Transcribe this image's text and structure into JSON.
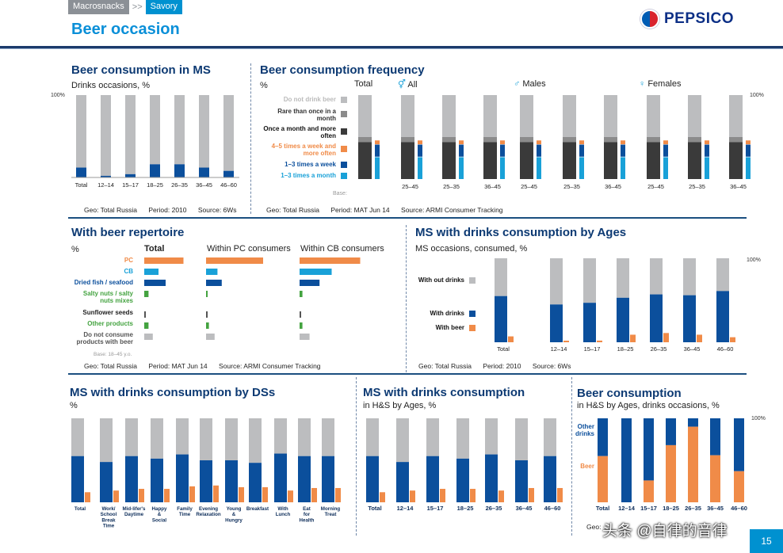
{
  "breadcrumb": {
    "parent": "Macrosnacks",
    "separator": ">>",
    "current": "Savory"
  },
  "page_title": "Beer occasion",
  "logo": "PEPSICO",
  "page_number": "15",
  "watermark": "头条 @自律的音律",
  "colors": {
    "grey": "#bcbdbf",
    "blue": "#0b4f9c",
    "orange": "#f08b48",
    "dark": "#3a3a3a",
    "cyan": "#19a1d8",
    "green": "#44a340"
  },
  "chart_data": [
    {
      "id": "beer_ms",
      "type": "bar",
      "title": "Beer consumption in MS",
      "subtitle": "Drinks occasions, %",
      "ylim": [
        0,
        100
      ],
      "top_label": "100%",
      "categories": [
        "Total",
        "12–14",
        "15–17",
        "18–25",
        "26–35",
        "36–45",
        "46–60"
      ],
      "series": [
        {
          "values": [
            12,
            2,
            4,
            16,
            16,
            12,
            8
          ]
        },
        {
          "values": [
            88,
            98,
            96,
            84,
            84,
            88,
            92
          ]
        }
      ],
      "footer": {
        "geo": "Geo: Total Russia",
        "period": "Period: 2010",
        "source": "Source: 6Ws"
      }
    },
    {
      "id": "beer_freq",
      "type": "bar",
      "title": "Beer consumption frequency",
      "subtitle": "%",
      "top_label": "100%",
      "legend": [
        "Do not drink beer",
        "Rare than once in a month",
        "Once a month and more often",
        "4–5 times a week and more often",
        "1–3 times a week",
        "1–3 times a month"
      ],
      "groups": [
        {
          "label": "Total",
          "categories": [
            ""
          ]
        },
        {
          "label": "All",
          "categories": [
            "25–45",
            "25–35",
            "36–45"
          ]
        },
        {
          "label": "Males",
          "categories": [
            "25–45",
            "25–35",
            "36–45"
          ]
        },
        {
          "label": "Females",
          "categories": [
            "25–45",
            "25–35",
            "36–45"
          ]
        }
      ],
      "base_label": "Base:",
      "footer": {
        "geo": "Geo: Total Russia",
        "period": "Period: MAT Jun 14",
        "source": "Source: ARMI Consumer Tracking"
      }
    },
    {
      "id": "repertoire",
      "type": "bar",
      "title": "With beer repertoire",
      "subtitle": "%",
      "columns": [
        "Total",
        "Within PC consumers",
        "Within CB consumers"
      ],
      "rows": [
        "PC",
        "CB",
        "Dried fish / seafood",
        "Salty nuts / salty nuts mixes",
        "Sunflower seeds",
        "Other products",
        "Do not consume products with beer"
      ],
      "values": [
        [
          55,
          20,
          30,
          6,
          2,
          6,
          12
        ],
        [
          80,
          16,
          22,
          2,
          2,
          4,
          12
        ],
        [
          85,
          45,
          28,
          4,
          2,
          4,
          14
        ]
      ],
      "base_label": "Base: 18–45 y.o.",
      "footer": {
        "geo": "Geo: Total Russia",
        "period": "Period: MAT Jun 14",
        "source": "Source: ARMI Consumer Tracking"
      }
    },
    {
      "id": "ms_ages",
      "type": "bar",
      "title": "MS with drinks consumption by Ages",
      "subtitle": "MS occasions, consumed, %",
      "top_label": "100%",
      "legend": [
        "With out drinks",
        "With drinks",
        "With beer"
      ],
      "categories": [
        "Total",
        "12–14",
        "15–17",
        "18–25",
        "26–35",
        "36–45",
        "46–60"
      ],
      "series": [
        {
          "name": "With drinks",
          "values": [
            55,
            45,
            47,
            53,
            57,
            56,
            61
          ]
        },
        {
          "name": "With beer",
          "values": [
            7,
            1,
            2,
            9,
            11,
            9,
            6
          ]
        }
      ],
      "footer": {
        "geo": "Geo: Total Russia",
        "period": "Period: 2010",
        "source": "Source: 6Ws"
      }
    },
    {
      "id": "ms_ds",
      "type": "bar",
      "title": "MS with drinks consumption by DSs",
      "subtitle": "%",
      "categories": [
        "Total",
        "Work/ School Break Time",
        "Mid-lifer's Daytime",
        "Happy & Social",
        "Family Time",
        "Evening Relaxation",
        "Young & Hungry",
        "Breakfast",
        "With Lunch",
        "Eat for Health",
        "Morning Treat"
      ],
      "series": [
        {
          "values": [
            55,
            48,
            55,
            52,
            57,
            50,
            50,
            47,
            58,
            55,
            55
          ]
        },
        {
          "values": [
            12,
            14,
            16,
            16,
            19,
            20,
            18,
            18,
            14,
            17,
            17
          ]
        }
      ]
    },
    {
      "id": "ms_hs",
      "type": "bar",
      "title": "MS with drinks consumption",
      "subtitle": "in H&S by Ages, %",
      "categories": [
        "Total",
        "12–14",
        "15–17",
        "18–25",
        "26–35",
        "36–45",
        "46–60"
      ],
      "series": [
        {
          "values": [
            55,
            48,
            55,
            52,
            57,
            50,
            55
          ]
        },
        {
          "values": [
            12,
            14,
            16,
            16,
            14,
            17,
            17
          ]
        }
      ]
    },
    {
      "id": "beer_hs",
      "type": "bar",
      "title": "Beer consumption",
      "subtitle": "in H&S by Ages, drinks occasions, %",
      "top_label": "100%",
      "legend": [
        "Other drinks",
        "Beer"
      ],
      "categories": [
        "Total",
        "12–14",
        "15–17",
        "18–25",
        "26–35",
        "36–45",
        "46–60"
      ],
      "series": [
        {
          "name": "Beer",
          "values": [
            55,
            0,
            26,
            68,
            90,
            56,
            37
          ]
        }
      ],
      "footer": {
        "geo": "Geo:"
      }
    }
  ]
}
